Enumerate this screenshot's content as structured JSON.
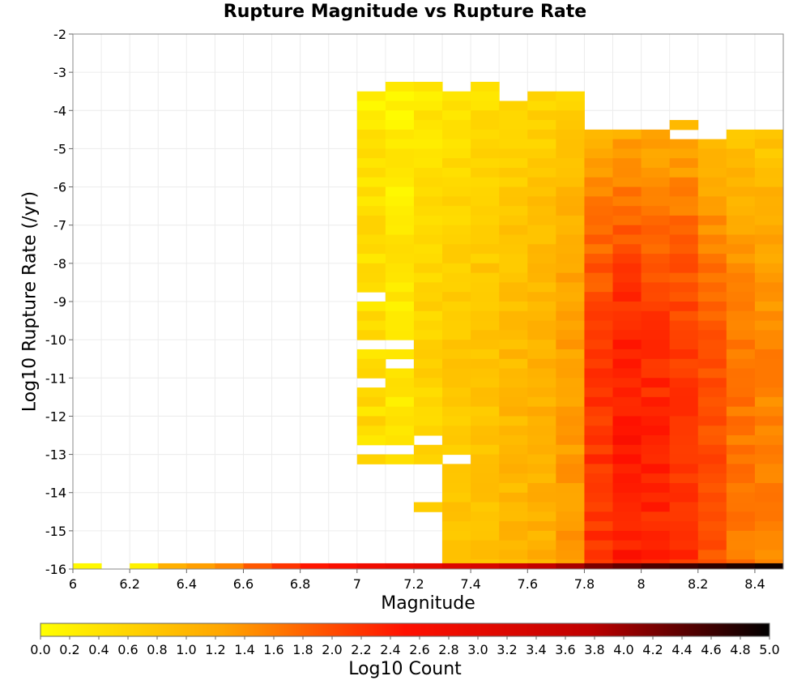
{
  "chart_data": {
    "type": "heatmap",
    "title": "Rupture Magnitude vs Rupture Rate",
    "xlabel": "Magnitude",
    "ylabel": "Log10 Rupture Rate (/yr)",
    "xlim": [
      6.0,
      8.5
    ],
    "ylim": [
      -16,
      -2
    ],
    "x_bin_width": 0.1,
    "y_bin_height": 0.25,
    "x_ticks": [
      "6",
      "6.2",
      "6.4",
      "6.6",
      "6.8",
      "7",
      "7.2",
      "7.4",
      "7.6",
      "7.8",
      "8",
      "8.2",
      "8.4"
    ],
    "y_ticks": [
      "-2",
      "-3",
      "-4",
      "-5",
      "-6",
      "-7",
      "-8",
      "-9",
      "-10",
      "-11",
      "-12",
      "-13",
      "-14",
      "-15",
      "-16"
    ],
    "grid": true,
    "colorbar": {
      "label": "Log10 Count",
      "range": [
        0.0,
        5.0
      ],
      "ticks": [
        "0.0",
        "0.2",
        "0.4",
        "0.6",
        "0.8",
        "1.0",
        "1.2",
        "1.4",
        "1.6",
        "1.8",
        "2.0",
        "2.2",
        "2.4",
        "2.6",
        "2.8",
        "3.0",
        "3.2",
        "3.4",
        "3.6",
        "3.8",
        "4.0",
        "4.2",
        "4.4",
        "4.6",
        "4.8",
        "5.0"
      ],
      "colors": [
        "#ffff00",
        "#ffa500",
        "#ff1000",
        "#c00000",
        "#000000"
      ],
      "placement": "bottom"
    },
    "bottom_row": {
      "y_range": [
        -16,
        -15.85
      ],
      "bins": [
        {
          "x": 6.0,
          "value": 0.1
        },
        {
          "x": 6.2,
          "value": 0.2
        },
        {
          "x": 6.3,
          "value": 1.1
        },
        {
          "x": 6.4,
          "value": 1.3
        },
        {
          "x": 6.5,
          "value": 1.5
        },
        {
          "x": 6.6,
          "value": 1.9
        },
        {
          "x": 6.7,
          "value": 2.2
        },
        {
          "x": 6.8,
          "value": 2.45
        },
        {
          "x": 6.9,
          "value": 2.6
        },
        {
          "x": 7.0,
          "value": 2.8
        },
        {
          "x": 7.1,
          "value": 2.9
        },
        {
          "x": 7.2,
          "value": 3.0
        },
        {
          "x": 7.3,
          "value": 3.2
        },
        {
          "x": 7.4,
          "value": 3.3
        },
        {
          "x": 7.5,
          "value": 3.5
        },
        {
          "x": 7.6,
          "value": 3.7
        },
        {
          "x": 7.7,
          "value": 3.9
        },
        {
          "x": 7.8,
          "value": 4.2
        },
        {
          "x": 7.9,
          "value": 4.35
        },
        {
          "x": 8.0,
          "value": 4.5
        },
        {
          "x": 8.1,
          "value": 4.6
        },
        {
          "x": 8.2,
          "value": 4.7
        },
        {
          "x": 8.3,
          "value": 4.8
        },
        {
          "x": 8.4,
          "value": 4.9
        }
      ]
    },
    "columns": [
      {
        "x": 7.0,
        "y_top": -3.5,
        "y_bottom": -13.25,
        "value": 0.45,
        "variation": 0.4,
        "gaps": [
          -8.75,
          -10.0,
          -11.0,
          -12.75
        ]
      },
      {
        "x": 7.1,
        "y_top": -3.25,
        "y_bottom": -13.25,
        "value": 0.3,
        "variation": 0.35,
        "gaps": [
          -10.0,
          -10.5,
          -12.75
        ]
      },
      {
        "x": 7.2,
        "y_top": -3.25,
        "y_bottom": -15.5,
        "value": 0.55,
        "variation": 0.3,
        "gaps": [
          -12.5,
          -13.25,
          -13.5,
          -13.75,
          -14.0,
          -14.5,
          -14.75,
          -15.0,
          -15.25
        ]
      },
      {
        "x": 7.3,
        "y_top": -3.5,
        "y_bottom": -15.85,
        "value": 0.7,
        "variation": 0.3,
        "gaps": [
          -13.0
        ]
      },
      {
        "x": 7.4,
        "y_top": -3.25,
        "y_bottom": -15.85,
        "value": 0.75,
        "variation": 0.3,
        "gaps": []
      },
      {
        "x": 7.5,
        "y_top": -3.75,
        "y_bottom": -15.85,
        "value": 0.9,
        "variation": 0.3,
        "gaps": []
      },
      {
        "x": 7.6,
        "y_top": -3.5,
        "y_bottom": -15.85,
        "value": 1.0,
        "variation": 0.3,
        "gaps": []
      },
      {
        "x": 7.7,
        "y_top": -3.5,
        "y_bottom": -15.85,
        "value": 1.2,
        "variation": 0.3,
        "gaps": []
      },
      {
        "x": 7.8,
        "y_top": -4.5,
        "y_bottom": -15.85,
        "value": 2.0,
        "variation": 0.35,
        "gaps": []
      },
      {
        "x": 7.9,
        "y_top": -4.5,
        "y_bottom": -15.85,
        "value": 2.2,
        "variation": 0.35,
        "gaps": []
      },
      {
        "x": 8.0,
        "y_top": -4.5,
        "y_bottom": -15.85,
        "value": 2.1,
        "variation": 0.35,
        "gaps": []
      },
      {
        "x": 8.1,
        "y_top": -4.25,
        "y_bottom": -15.85,
        "value": 2.0,
        "variation": 0.35,
        "gaps": [
          -4.5
        ]
      },
      {
        "x": 8.2,
        "y_top": -4.75,
        "y_bottom": -15.85,
        "value": 1.8,
        "variation": 0.3,
        "gaps": []
      },
      {
        "x": 8.3,
        "y_top": -4.5,
        "y_bottom": -15.85,
        "value": 1.5,
        "variation": 0.3,
        "gaps": []
      },
      {
        "x": 8.4,
        "y_top": -4.5,
        "y_bottom": -15.85,
        "value": 1.4,
        "variation": 0.3,
        "gaps": []
      }
    ]
  }
}
